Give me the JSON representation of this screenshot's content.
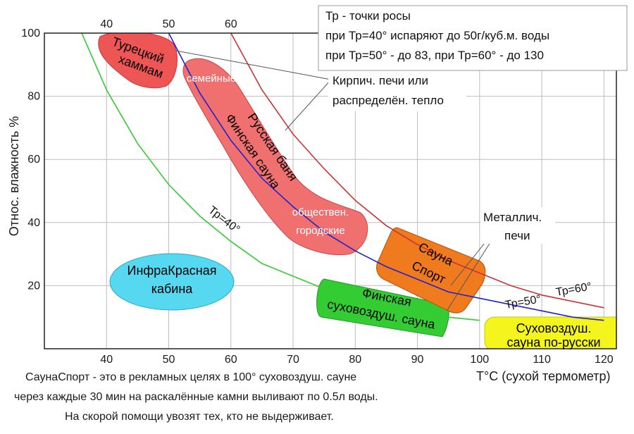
{
  "chart_data": {
    "type": "line",
    "title": "",
    "xlabel": "T°С (сухой термометр)",
    "ylabel": "Относ. влажность %",
    "xlim": [
      30,
      122
    ],
    "ylim": [
      0,
      100
    ],
    "x_ticks": [
      40,
      50,
      60,
      70,
      80,
      90,
      100,
      110,
      120
    ],
    "x_ticks_top": [
      40,
      50,
      60
    ],
    "y_ticks": [
      20,
      40,
      60,
      80,
      100
    ],
    "grid": true,
    "series": [
      {
        "name": "Тр=40°",
        "color": "#33cc33",
        "points": [
          [
            36,
            100
          ],
          [
            40,
            82
          ],
          [
            45,
            65
          ],
          [
            50,
            52
          ],
          [
            55,
            42
          ],
          [
            60,
            34
          ],
          [
            65,
            27
          ],
          [
            70,
            23
          ],
          [
            75,
            19
          ],
          [
            80,
            16
          ],
          [
            85,
            13
          ],
          [
            90,
            11
          ],
          [
            95,
            10
          ],
          [
            100,
            9
          ]
        ]
      },
      {
        "name": "Тр=50°",
        "color": "#2222cc",
        "points": [
          [
            50,
            100
          ],
          [
            55,
            81
          ],
          [
            60,
            66
          ],
          [
            65,
            54
          ],
          [
            70,
            45
          ],
          [
            75,
            37
          ],
          [
            80,
            31
          ],
          [
            85,
            26
          ],
          [
            90,
            22
          ],
          [
            95,
            18
          ],
          [
            100,
            16
          ],
          [
            105,
            14
          ],
          [
            110,
            12
          ],
          [
            115,
            10
          ],
          [
            120,
            9
          ]
        ]
      },
      {
        "name": "Тр=60°",
        "color": "#cc3333",
        "points": [
          [
            60,
            100
          ],
          [
            65,
            82
          ],
          [
            70,
            68
          ],
          [
            75,
            57
          ],
          [
            80,
            47
          ],
          [
            85,
            39
          ],
          [
            90,
            33
          ],
          [
            95,
            28
          ],
          [
            100,
            24
          ],
          [
            105,
            20
          ],
          [
            110,
            17
          ],
          [
            115,
            15
          ],
          [
            120,
            13
          ]
        ]
      }
    ],
    "regions": [
      {
        "name": "Турецкий хаммам",
        "lines": [
          "Турецкий",
          "хаммам"
        ],
        "fill": "#ee5555",
        "label_color": "#111111"
      },
      {
        "name": "Русская баня Финская сауна",
        "lines": [
          "Русская баня",
          "Финская сауна"
        ],
        "fill": "#f07070",
        "label_color": "#111111"
      },
      {
        "name": "ИнфраКрасная кабина",
        "lines": [
          "ИнфраКрасная",
          "кабина"
        ],
        "fill": "#55d8f0",
        "label_color": "#111111"
      },
      {
        "name": "Сауна Спорт",
        "lines": [
          "Сауна",
          "Спорт"
        ],
        "fill": "#f07a1e",
        "label_color": "#111111"
      },
      {
        "name": "Финская суховоздуш. сауна",
        "lines": [
          "Финская",
          "суховоздуш. сауна"
        ],
        "fill": "#33cc33",
        "label_color": "#111111"
      },
      {
        "name": "Суховоздуш. сауна по-русски",
        "lines": [
          "Суховоздуш.",
          "сауна по-русски"
        ],
        "fill": "#f5f51e",
        "label_color": "#111111"
      }
    ],
    "annotations": {
      "semeinye": "семейные",
      "obshchestven": [
        "обществен.",
        "городские"
      ],
      "kirpich": [
        "Кирпич. печи или",
        "распределён. тепло"
      ],
      "metallich": [
        "Металлич.",
        "печи"
      ]
    },
    "legend": {
      "placement": "top-right",
      "lines": [
        "Тр - точки росы",
        "при Тр=40° испаряют до 50г/куб.м. воды",
        "при Тр=50° - до 83,  при  Тр=60° - до 130"
      ]
    },
    "footnote": [
      "СаунаСпорт - это в рекламных целях в 100° суховоздуш. сауне",
      "через каждые 30 мин на раскалённые камни выливают по 0.5л воды.",
      "На скорой помощи увозят тех, кто  не выдерживает."
    ]
  }
}
